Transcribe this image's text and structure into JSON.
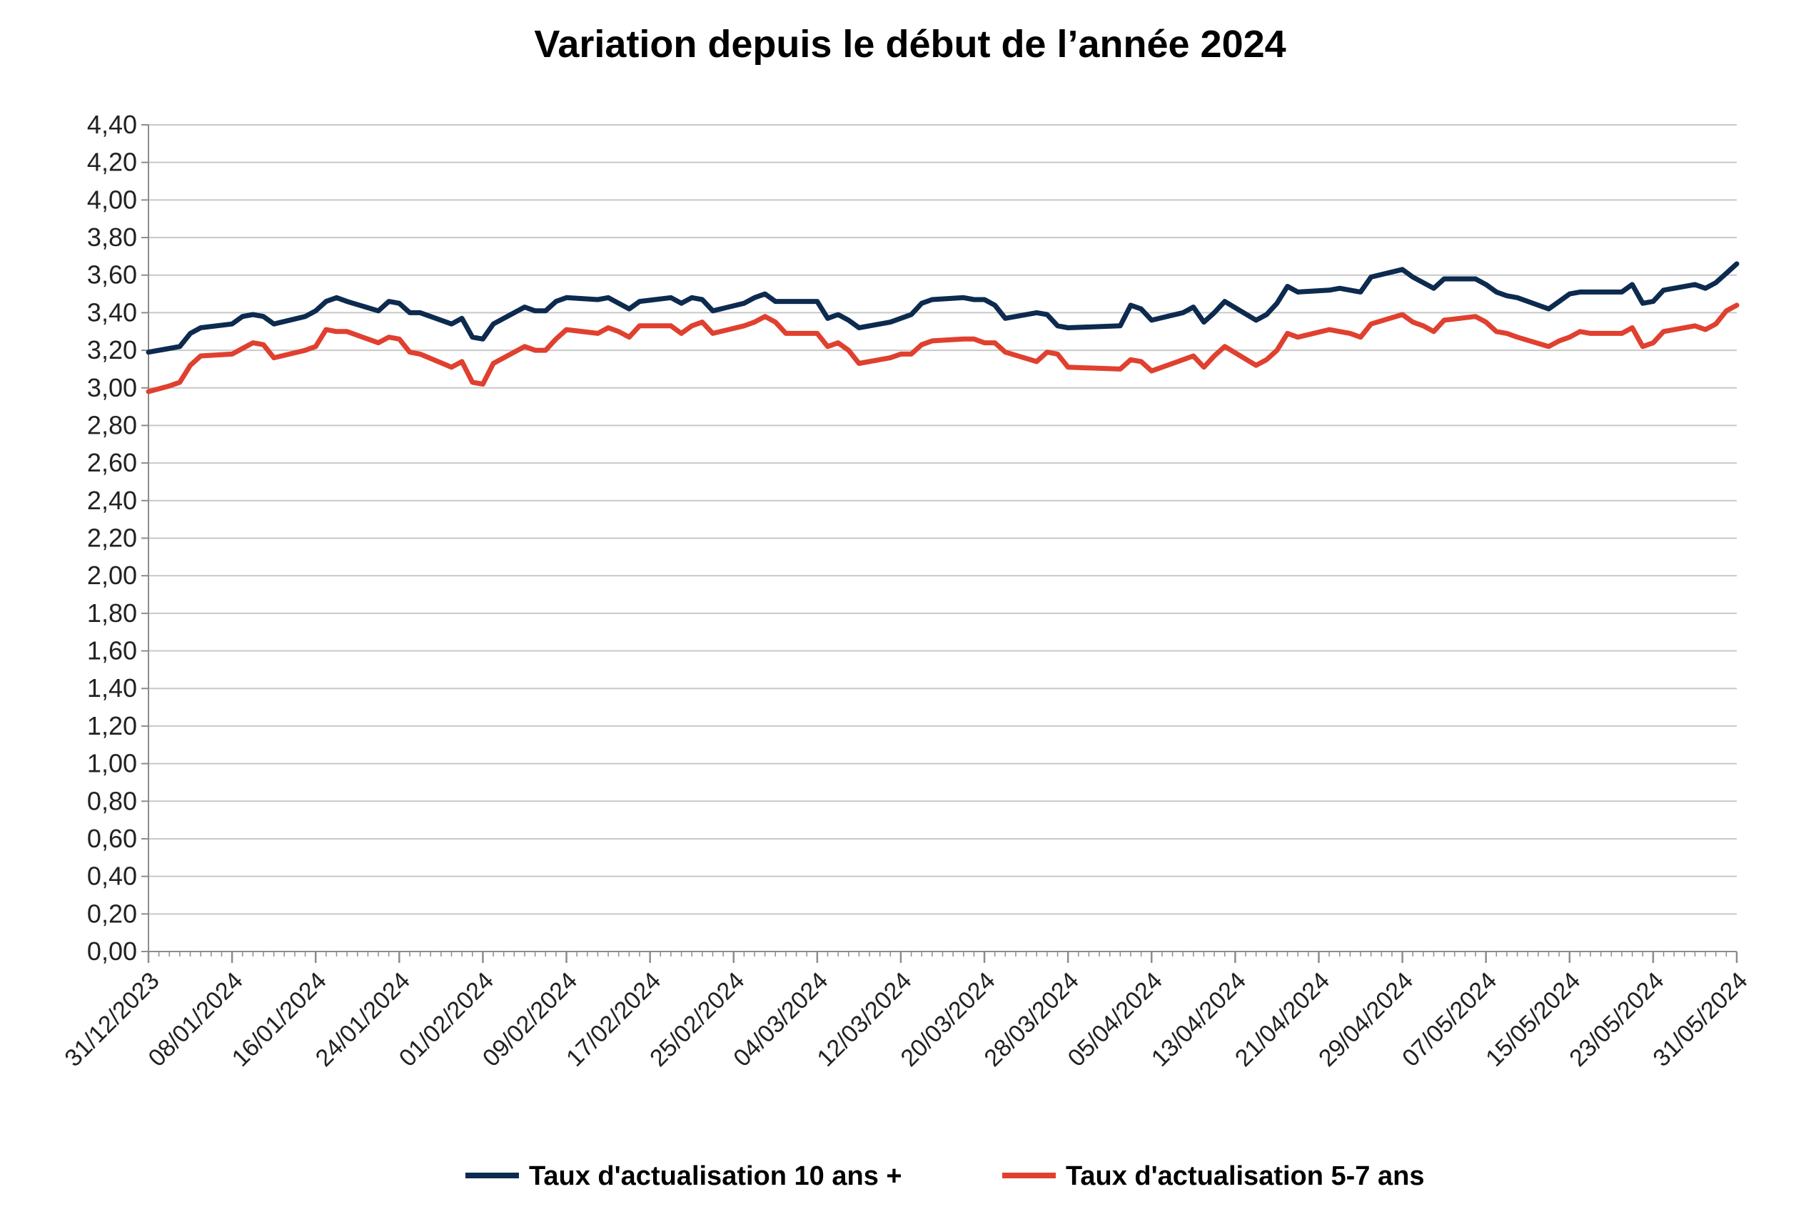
{
  "chart_data": {
    "type": "line",
    "title": "Variation depuis le début de l’année 2024",
    "xlabel": "",
    "ylabel": "",
    "x_range": [
      "31/12/2023",
      "31/05/2024"
    ],
    "ylim": [
      0,
      4.4
    ],
    "y_ticks": [
      "0,00",
      "0,20",
      "0,40",
      "0,60",
      "0,80",
      "1,00",
      "1,20",
      "1,40",
      "1,60",
      "1,80",
      "2,00",
      "2,20",
      "2,40",
      "2,60",
      "2,80",
      "3,00",
      "3,20",
      "3,40",
      "3,60",
      "3,80",
      "4,00",
      "4,20",
      "4,40"
    ],
    "x_ticks": [
      "31/12/2023",
      "08/01/2024",
      "16/01/2024",
      "24/01/2024",
      "01/02/2024",
      "09/02/2024",
      "17/02/2024",
      "25/02/2024",
      "04/03/2024",
      "12/03/2024",
      "20/03/2024",
      "28/03/2024",
      "05/04/2024",
      "13/04/2024",
      "21/04/2024",
      "29/04/2024",
      "07/05/2024",
      "15/05/2024",
      "23/05/2024",
      "31/05/2024"
    ],
    "grid": "horizontal",
    "legend_position": "bottom",
    "series": [
      {
        "name": "Taux d'actualisation 10 ans +",
        "color": "#0d2a4f",
        "points": [
          [
            "31/12/2023",
            3.19
          ],
          [
            "02/01/2024",
            3.21
          ],
          [
            "03/01/2024",
            3.22
          ],
          [
            "04/01/2024",
            3.29
          ],
          [
            "05/01/2024",
            3.32
          ],
          [
            "08/01/2024",
            3.34
          ],
          [
            "09/01/2024",
            3.38
          ],
          [
            "10/01/2024",
            3.39
          ],
          [
            "11/01/2024",
            3.38
          ],
          [
            "12/01/2024",
            3.34
          ],
          [
            "15/01/2024",
            3.38
          ],
          [
            "16/01/2024",
            3.41
          ],
          [
            "17/01/2024",
            3.46
          ],
          [
            "18/01/2024",
            3.48
          ],
          [
            "19/01/2024",
            3.46
          ],
          [
            "22/01/2024",
            3.41
          ],
          [
            "23/01/2024",
            3.46
          ],
          [
            "24/01/2024",
            3.45
          ],
          [
            "25/01/2024",
            3.4
          ],
          [
            "26/01/2024",
            3.4
          ],
          [
            "29/01/2024",
            3.34
          ],
          [
            "30/01/2024",
            3.37
          ],
          [
            "31/01/2024",
            3.27
          ],
          [
            "01/02/2024",
            3.26
          ],
          [
            "02/02/2024",
            3.34
          ],
          [
            "05/02/2024",
            3.43
          ],
          [
            "06/02/2024",
            3.41
          ],
          [
            "07/02/2024",
            3.41
          ],
          [
            "08/02/2024",
            3.46
          ],
          [
            "09/02/2024",
            3.48
          ],
          [
            "12/02/2024",
            3.47
          ],
          [
            "13/02/2024",
            3.48
          ],
          [
            "14/02/2024",
            3.45
          ],
          [
            "15/02/2024",
            3.42
          ],
          [
            "16/02/2024",
            3.46
          ],
          [
            "19/02/2024",
            3.48
          ],
          [
            "20/02/2024",
            3.45
          ],
          [
            "21/02/2024",
            3.48
          ],
          [
            "22/02/2024",
            3.47
          ],
          [
            "23/02/2024",
            3.41
          ],
          [
            "26/02/2024",
            3.45
          ],
          [
            "27/02/2024",
            3.48
          ],
          [
            "28/02/2024",
            3.5
          ],
          [
            "29/02/2024",
            3.46
          ],
          [
            "04/03/2024",
            3.46
          ],
          [
            "05/03/2024",
            3.37
          ],
          [
            "06/03/2024",
            3.39
          ],
          [
            "07/03/2024",
            3.36
          ],
          [
            "08/03/2024",
            3.32
          ],
          [
            "11/03/2024",
            3.35
          ],
          [
            "12/03/2024",
            3.37
          ],
          [
            "13/03/2024",
            3.39
          ],
          [
            "14/03/2024",
            3.45
          ],
          [
            "15/03/2024",
            3.47
          ],
          [
            "18/03/2024",
            3.48
          ],
          [
            "19/03/2024",
            3.47
          ],
          [
            "20/03/2024",
            3.47
          ],
          [
            "21/03/2024",
            3.44
          ],
          [
            "22/03/2024",
            3.37
          ],
          [
            "25/03/2024",
            3.4
          ],
          [
            "26/03/2024",
            3.39
          ],
          [
            "27/03/2024",
            3.33
          ],
          [
            "28/03/2024",
            3.32
          ],
          [
            "02/04/2024",
            3.33
          ],
          [
            "03/04/2024",
            3.44
          ],
          [
            "04/04/2024",
            3.42
          ],
          [
            "05/04/2024",
            3.36
          ],
          [
            "08/04/2024",
            3.4
          ],
          [
            "09/04/2024",
            3.43
          ],
          [
            "10/04/2024",
            3.35
          ],
          [
            "11/04/2024",
            3.4
          ],
          [
            "12/04/2024",
            3.46
          ],
          [
            "15/04/2024",
            3.36
          ],
          [
            "16/04/2024",
            3.39
          ],
          [
            "17/04/2024",
            3.45
          ],
          [
            "18/04/2024",
            3.54
          ],
          [
            "19/04/2024",
            3.51
          ],
          [
            "22/04/2024",
            3.52
          ],
          [
            "23/04/2024",
            3.53
          ],
          [
            "24/04/2024",
            3.52
          ],
          [
            "25/04/2024",
            3.51
          ],
          [
            "26/04/2024",
            3.59
          ],
          [
            "29/04/2024",
            3.63
          ],
          [
            "30/04/2024",
            3.59
          ],
          [
            "01/05/2024",
            3.56
          ],
          [
            "02/05/2024",
            3.53
          ],
          [
            "03/05/2024",
            3.58
          ],
          [
            "06/05/2024",
            3.58
          ],
          [
            "07/05/2024",
            3.55
          ],
          [
            "08/05/2024",
            3.51
          ],
          [
            "09/05/2024",
            3.49
          ],
          [
            "10/05/2024",
            3.48
          ],
          [
            "13/05/2024",
            3.42
          ],
          [
            "14/05/2024",
            3.46
          ],
          [
            "15/05/2024",
            3.5
          ],
          [
            "16/05/2024",
            3.51
          ],
          [
            "17/05/2024",
            3.51
          ],
          [
            "20/05/2024",
            3.51
          ],
          [
            "21/05/2024",
            3.55
          ],
          [
            "22/05/2024",
            3.45
          ],
          [
            "23/05/2024",
            3.46
          ],
          [
            "24/05/2024",
            3.52
          ],
          [
            "27/05/2024",
            3.55
          ],
          [
            "28/05/2024",
            3.53
          ],
          [
            "29/05/2024",
            3.56
          ],
          [
            "30/05/2024",
            3.61
          ],
          [
            "31/05/2024",
            3.66
          ]
        ]
      },
      {
        "name": "Taux d'actualisation 5-7 ans",
        "color": "#e0402f",
        "points": [
          [
            "31/12/2023",
            2.98
          ],
          [
            "02/01/2024",
            3.01
          ],
          [
            "03/01/2024",
            3.03
          ],
          [
            "04/01/2024",
            3.12
          ],
          [
            "05/01/2024",
            3.17
          ],
          [
            "08/01/2024",
            3.18
          ],
          [
            "09/01/2024",
            3.21
          ],
          [
            "10/01/2024",
            3.24
          ],
          [
            "11/01/2024",
            3.23
          ],
          [
            "12/01/2024",
            3.16
          ],
          [
            "15/01/2024",
            3.2
          ],
          [
            "16/01/2024",
            3.22
          ],
          [
            "17/01/2024",
            3.31
          ],
          [
            "18/01/2024",
            3.3
          ],
          [
            "19/01/2024",
            3.3
          ],
          [
            "22/01/2024",
            3.24
          ],
          [
            "23/01/2024",
            3.27
          ],
          [
            "24/01/2024",
            3.26
          ],
          [
            "25/01/2024",
            3.19
          ],
          [
            "26/01/2024",
            3.18
          ],
          [
            "29/01/2024",
            3.11
          ],
          [
            "30/01/2024",
            3.14
          ],
          [
            "31/01/2024",
            3.03
          ],
          [
            "01/02/2024",
            3.02
          ],
          [
            "02/02/2024",
            3.13
          ],
          [
            "05/02/2024",
            3.22
          ],
          [
            "06/02/2024",
            3.2
          ],
          [
            "07/02/2024",
            3.2
          ],
          [
            "08/02/2024",
            3.26
          ],
          [
            "09/02/2024",
            3.31
          ],
          [
            "12/02/2024",
            3.29
          ],
          [
            "13/02/2024",
            3.32
          ],
          [
            "14/02/2024",
            3.3
          ],
          [
            "15/02/2024",
            3.27
          ],
          [
            "16/02/2024",
            3.33
          ],
          [
            "19/02/2024",
            3.33
          ],
          [
            "20/02/2024",
            3.29
          ],
          [
            "21/02/2024",
            3.33
          ],
          [
            "22/02/2024",
            3.35
          ],
          [
            "23/02/2024",
            3.29
          ],
          [
            "26/02/2024",
            3.33
          ],
          [
            "27/02/2024",
            3.35
          ],
          [
            "28/02/2024",
            3.38
          ],
          [
            "29/02/2024",
            3.35
          ],
          [
            "01/03/2024",
            3.29
          ],
          [
            "04/03/2024",
            3.29
          ],
          [
            "05/03/2024",
            3.22
          ],
          [
            "06/03/2024",
            3.24
          ],
          [
            "07/03/2024",
            3.2
          ],
          [
            "08/03/2024",
            3.13
          ],
          [
            "11/03/2024",
            3.16
          ],
          [
            "12/03/2024",
            3.18
          ],
          [
            "13/03/2024",
            3.18
          ],
          [
            "14/03/2024",
            3.23
          ],
          [
            "15/03/2024",
            3.25
          ],
          [
            "18/03/2024",
            3.26
          ],
          [
            "19/03/2024",
            3.26
          ],
          [
            "20/03/2024",
            3.24
          ],
          [
            "21/03/2024",
            3.24
          ],
          [
            "22/03/2024",
            3.19
          ],
          [
            "25/03/2024",
            3.14
          ],
          [
            "26/03/2024",
            3.19
          ],
          [
            "27/03/2024",
            3.18
          ],
          [
            "28/03/2024",
            3.11
          ],
          [
            "02/04/2024",
            3.1
          ],
          [
            "03/04/2024",
            3.15
          ],
          [
            "04/04/2024",
            3.14
          ],
          [
            "05/04/2024",
            3.09
          ],
          [
            "08/04/2024",
            3.15
          ],
          [
            "09/04/2024",
            3.17
          ],
          [
            "10/04/2024",
            3.11
          ],
          [
            "11/04/2024",
            3.17
          ],
          [
            "12/04/2024",
            3.22
          ],
          [
            "15/04/2024",
            3.12
          ],
          [
            "16/04/2024",
            3.15
          ],
          [
            "17/04/2024",
            3.2
          ],
          [
            "18/04/2024",
            3.29
          ],
          [
            "19/04/2024",
            3.27
          ],
          [
            "22/04/2024",
            3.31
          ],
          [
            "23/04/2024",
            3.3
          ],
          [
            "24/04/2024",
            3.29
          ],
          [
            "25/04/2024",
            3.27
          ],
          [
            "26/04/2024",
            3.34
          ],
          [
            "29/04/2024",
            3.39
          ],
          [
            "30/04/2024",
            3.35
          ],
          [
            "01/05/2024",
            3.33
          ],
          [
            "02/05/2024",
            3.3
          ],
          [
            "03/05/2024",
            3.36
          ],
          [
            "06/05/2024",
            3.38
          ],
          [
            "07/05/2024",
            3.35
          ],
          [
            "08/05/2024",
            3.3
          ],
          [
            "09/05/2024",
            3.29
          ],
          [
            "10/05/2024",
            3.27
          ],
          [
            "13/05/2024",
            3.22
          ],
          [
            "14/05/2024",
            3.25
          ],
          [
            "15/05/2024",
            3.27
          ],
          [
            "16/05/2024",
            3.3
          ],
          [
            "17/05/2024",
            3.29
          ],
          [
            "20/05/2024",
            3.29
          ],
          [
            "21/05/2024",
            3.32
          ],
          [
            "22/05/2024",
            3.22
          ],
          [
            "23/05/2024",
            3.24
          ],
          [
            "24/05/2024",
            3.3
          ],
          [
            "27/05/2024",
            3.33
          ],
          [
            "28/05/2024",
            3.31
          ],
          [
            "29/05/2024",
            3.34
          ],
          [
            "30/05/2024",
            3.41
          ],
          [
            "31/05/2024",
            3.44
          ]
        ]
      }
    ]
  }
}
